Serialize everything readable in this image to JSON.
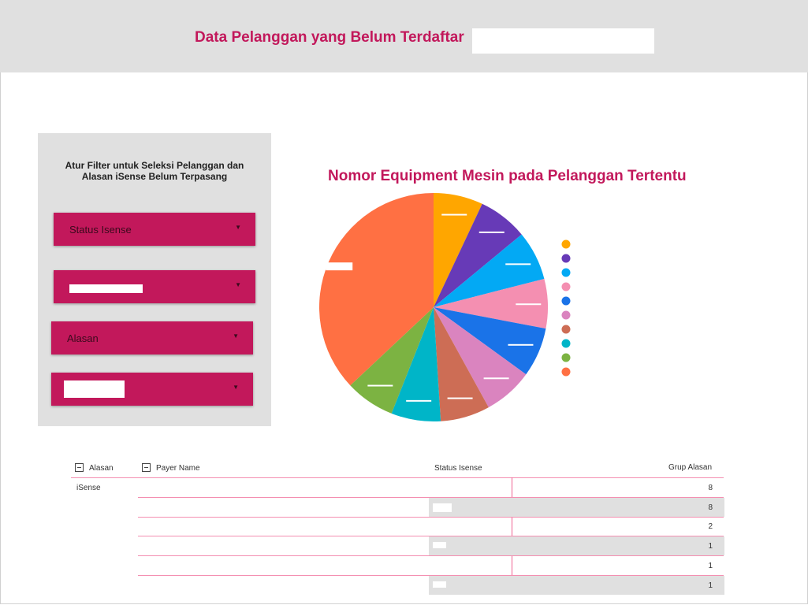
{
  "header": {
    "title": "Data Pelanggan yang Belum Terdaftar"
  },
  "filters": {
    "panel_title": "Atur Filter untuk Seleksi Pelanggan dan Alasan iSense Belum Terpasang",
    "dropdowns": [
      {
        "label": "Status Isense"
      },
      {
        "label": ""
      },
      {
        "label": "Alasan"
      },
      {
        "label": ""
      }
    ],
    "arrow_icon": "caret-down-icon"
  },
  "chart_data": {
    "type": "pie",
    "title": "Nomor Equipment Mesin pada Pelanggan Tertentu",
    "slices": [
      {
        "value": 7.0,
        "color": "#ffa600"
      },
      {
        "value": 7.0,
        "color": "#673ab7"
      },
      {
        "value": 7.0,
        "color": "#03a9f4"
      },
      {
        "value": 7.0,
        "color": "#f48fb1"
      },
      {
        "value": 7.0,
        "color": "#1a73e8"
      },
      {
        "value": 7.0,
        "color": "#da84bf"
      },
      {
        "value": 7.0,
        "color": "#cd6d55"
      },
      {
        "value": 7.0,
        "color": "#00b5c8"
      },
      {
        "value": 7.0,
        "color": "#7cb342"
      },
      {
        "value": 37.0,
        "color": "#ff7043"
      }
    ],
    "legend_position": "right"
  },
  "table": {
    "columns": [
      "Alasan",
      "Payer Name",
      "Status Isense",
      "Grup Alasan"
    ],
    "group_label": "iSense",
    "rows": [
      {
        "value": "8"
      },
      {
        "value": "8"
      },
      {
        "value": "2"
      },
      {
        "value": "1"
      },
      {
        "value": "1"
      },
      {
        "value": "1"
      }
    ]
  }
}
